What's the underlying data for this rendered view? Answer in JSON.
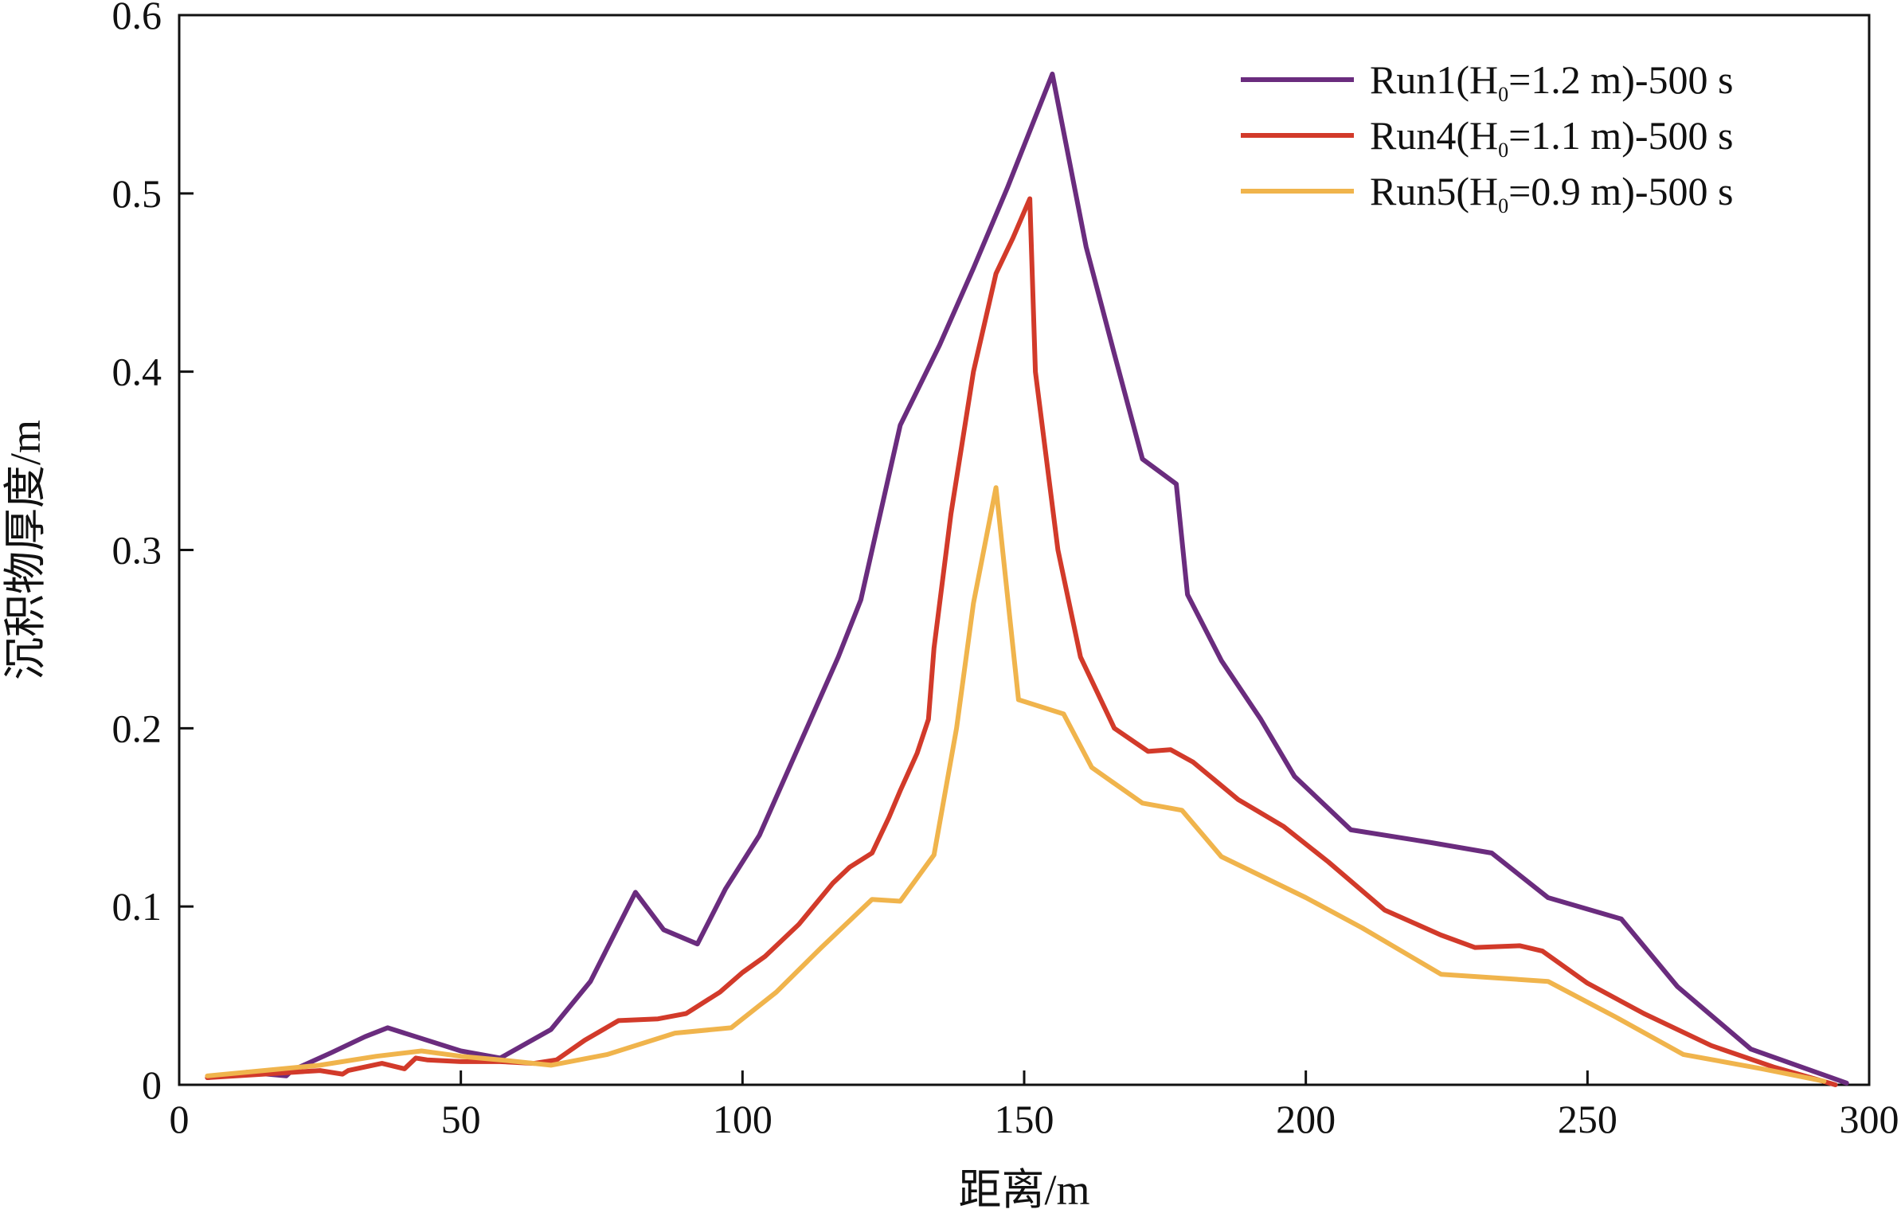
{
  "chart_data": {
    "type": "line",
    "xlabel": "距离/m",
    "ylabel": "沉积物厚度/m",
    "xlim": [
      0,
      300
    ],
    "ylim": [
      0,
      0.6
    ],
    "xticks": [
      0,
      50,
      100,
      150,
      200,
      250,
      300
    ],
    "xtick_labels": [
      "0",
      "50",
      "100",
      "150",
      "200",
      "250",
      "300"
    ],
    "yticks": [
      0,
      0.1,
      0.2,
      0.3,
      0.4,
      0.5,
      0.6
    ],
    "ytick_labels": [
      "0",
      "0.1",
      "0.2",
      "0.3",
      "0.4",
      "0.5",
      "0.6"
    ],
    "grid": false,
    "legend_position": "top-right",
    "series": [
      {
        "name": "Run1(H0=1.2 m)-500 s",
        "legend_parts": {
          "prefix": "Run1(H",
          "sub": "0",
          "suffix": "=1.2 m)-500 s"
        },
        "color": "#6a2c7e",
        "x": [
          5,
          12,
          19,
          20,
          27,
          33,
          37,
          43,
          50,
          57,
          66,
          73,
          81,
          86,
          92,
          97,
          103,
          110,
          117,
          121,
          128,
          135,
          141,
          147,
          155,
          161,
          166,
          171,
          177,
          179,
          185,
          192,
          198,
          208,
          222,
          233,
          243,
          256,
          266,
          279,
          296
        ],
        "y": [
          0.004,
          0.007,
          0.005,
          0.008,
          0.018,
          0.027,
          0.032,
          0.026,
          0.019,
          0.015,
          0.031,
          0.058,
          0.108,
          0.087,
          0.079,
          0.11,
          0.14,
          0.19,
          0.24,
          0.272,
          0.37,
          0.415,
          0.458,
          0.503,
          0.567,
          0.47,
          0.41,
          0.351,
          0.337,
          0.275,
          0.238,
          0.205,
          0.173,
          0.143,
          0.136,
          0.13,
          0.105,
          0.093,
          0.055,
          0.02,
          0.001
        ]
      },
      {
        "name": "Run4(H0=1.1 m)-500 s",
        "legend_parts": {
          "prefix": "Run4(H",
          "sub": "0",
          "suffix": "=1.1 m)-500 s"
        },
        "color": "#d23a2a",
        "x": [
          5,
          15,
          25,
          29,
          30,
          36,
          40,
          42,
          44,
          50,
          57,
          63,
          67,
          72,
          78,
          85,
          90,
          96,
          100,
          104,
          110,
          116,
          119,
          123,
          126,
          128,
          131,
          133,
          134,
          137,
          141,
          145,
          148,
          151,
          152,
          156,
          160,
          166,
          172,
          176,
          180,
          188,
          196,
          204,
          214,
          224,
          230,
          238,
          242,
          250,
          260,
          272,
          283,
          294
        ],
        "y": [
          0.004,
          0.006,
          0.008,
          0.006,
          0.008,
          0.012,
          0.009,
          0.015,
          0.014,
          0.013,
          0.013,
          0.012,
          0.014,
          0.025,
          0.036,
          0.037,
          0.04,
          0.052,
          0.063,
          0.072,
          0.09,
          0.113,
          0.122,
          0.13,
          0.15,
          0.165,
          0.186,
          0.205,
          0.245,
          0.32,
          0.4,
          0.455,
          0.475,
          0.497,
          0.4,
          0.3,
          0.24,
          0.2,
          0.187,
          0.188,
          0.181,
          0.16,
          0.145,
          0.125,
          0.098,
          0.084,
          0.077,
          0.078,
          0.075,
          0.057,
          0.04,
          0.022,
          0.01,
          0.0
        ]
      },
      {
        "name": "Run5(H0=0.9 m)-500 s",
        "legend_parts": {
          "prefix": "Run5(H",
          "sub": "0",
          "suffix": "=0.9 m)-500 s"
        },
        "color": "#f0b44c",
        "x": [
          5,
          15,
          25,
          35,
          43,
          50,
          57,
          66,
          76,
          88,
          98,
          106,
          114,
          123,
          128,
          134,
          138,
          141,
          145,
          149,
          157,
          162,
          171,
          178,
          185,
          200,
          210,
          224,
          243,
          255,
          267,
          281,
          292
        ],
        "y": [
          0.005,
          0.008,
          0.011,
          0.016,
          0.019,
          0.016,
          0.014,
          0.011,
          0.017,
          0.029,
          0.032,
          0.052,
          0.077,
          0.104,
          0.103,
          0.129,
          0.2,
          0.27,
          0.335,
          0.216,
          0.208,
          0.178,
          0.158,
          0.154,
          0.128,
          0.105,
          0.088,
          0.062,
          0.058,
          0.038,
          0.017,
          0.009,
          0.002
        ]
      }
    ]
  }
}
